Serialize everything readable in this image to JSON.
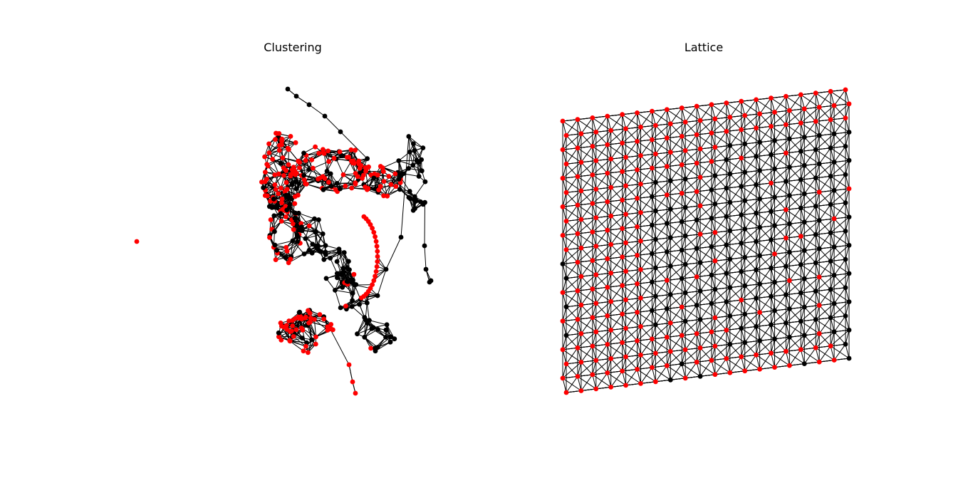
{
  "figure": {
    "panels": [
      {
        "id": "clustering",
        "title": "Clustering"
      },
      {
        "id": "lattice",
        "title": "Lattice"
      }
    ],
    "colors": {
      "edge": "#000000",
      "node_default": "#000000",
      "node_highlight": "#ff0000",
      "background": "#ffffff"
    }
  }
}
